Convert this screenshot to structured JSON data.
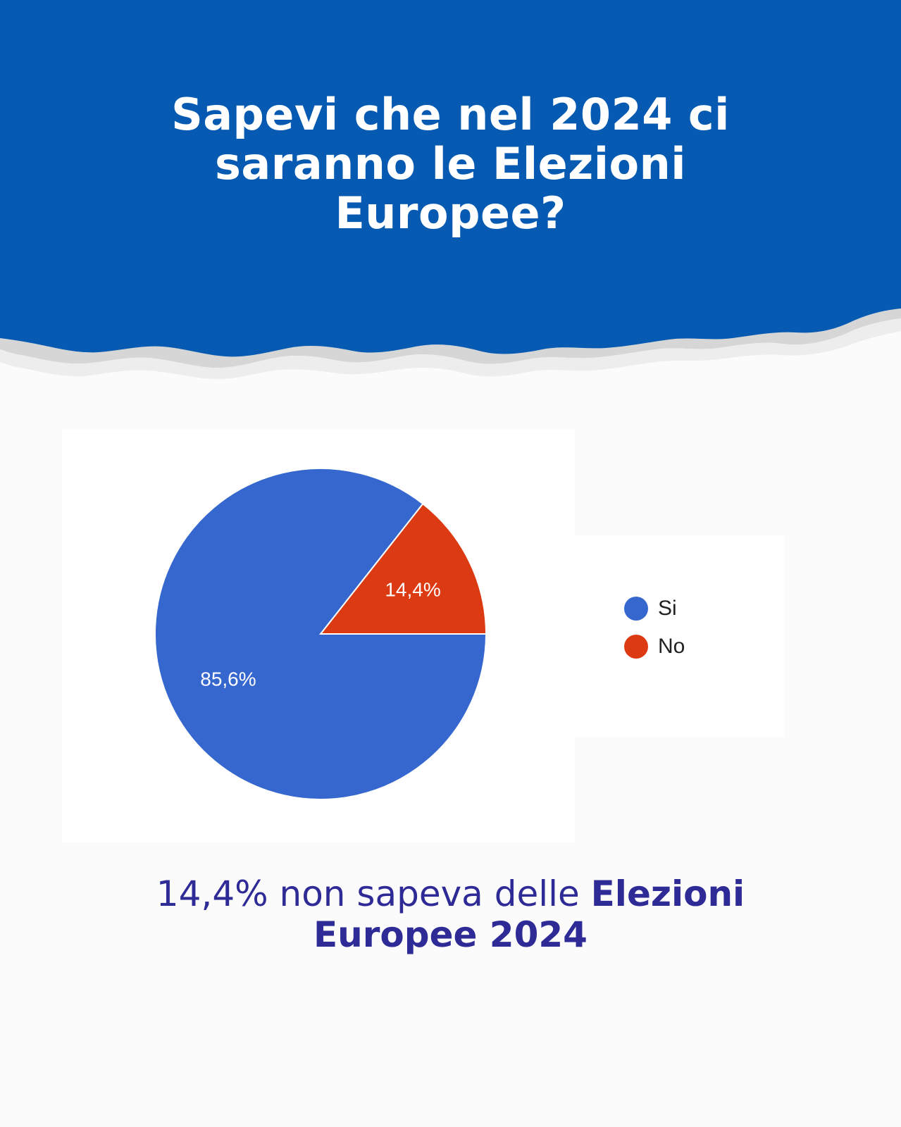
{
  "headline": {
    "lines": [
      "Sapevi che nel 2024 ci",
      "saranno le Elezioni",
      "Europee?"
    ]
  },
  "colors": {
    "band": "#075ab1",
    "paper_edge": "#d9d9d9",
    "caption": "#2e2a96",
    "si": "#3567cf",
    "no": "#dc3a12"
  },
  "chart_data": {
    "type": "pie",
    "slices": [
      {
        "label": "Si",
        "value": 85.6,
        "display": "85,6%",
        "color": "#3567cf"
      },
      {
        "label": "No",
        "value": 14.4,
        "display": "14,4%",
        "color": "#dc3a12"
      }
    ],
    "legend_position": "right"
  },
  "legend": {
    "items": [
      {
        "label": "Si",
        "color": "#3567cf"
      },
      {
        "label": "No",
        "color": "#dc3a12"
      }
    ]
  },
  "caption": {
    "line1_regular": "14,4% non sapeva delle ",
    "line1_bold": "Elezioni",
    "line2_bold": "Europee 2024"
  }
}
